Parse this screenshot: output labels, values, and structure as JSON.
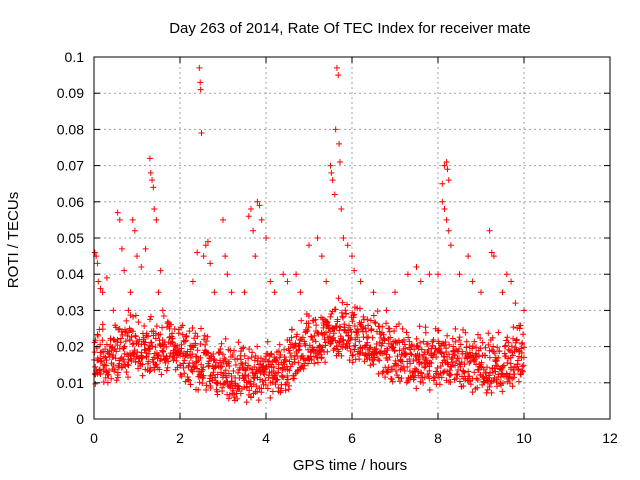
{
  "chart_data": {
    "type": "scatter",
    "title": "Day 263 of 2014, Rate Of TEC Index for receiver mate",
    "xlabel": "GPS time / hours",
    "ylabel": "ROTI / TECUs",
    "xlim": [
      0,
      12
    ],
    "ylim": [
      0,
      0.1
    ],
    "xticks": [
      0,
      2,
      4,
      6,
      8,
      10,
      12
    ],
    "xtick_labels": [
      "0",
      "2",
      "4",
      "6",
      "8",
      "10",
      "12"
    ],
    "yticks": [
      0,
      0.01,
      0.02,
      0.03,
      0.04,
      0.05,
      0.06,
      0.07,
      0.08,
      0.09,
      0.1
    ],
    "ytick_labels": [
      "0",
      "0.01",
      "0.02",
      "0.03",
      "0.04",
      "0.05",
      "0.06",
      "0.07",
      "0.08",
      "0.09",
      "0.1"
    ],
    "grid": true,
    "marker": "+",
    "marker_color": "#ff0000",
    "series": [
      {
        "name": "ROTI",
        "points": [
          [
            0.02,
            0.046
          ],
          [
            0.05,
            0.045
          ],
          [
            0.08,
            0.043
          ],
          [
            0.1,
            0.038
          ],
          [
            0.15,
            0.036
          ],
          [
            0.2,
            0.035
          ],
          [
            0.3,
            0.039
          ],
          [
            0.45,
            0.03
          ],
          [
            0.55,
            0.057
          ],
          [
            0.6,
            0.055
          ],
          [
            0.65,
            0.047
          ],
          [
            0.7,
            0.041
          ],
          [
            0.8,
            0.03
          ],
          [
            0.85,
            0.035
          ],
          [
            0.9,
            0.055
          ],
          [
            0.95,
            0.052
          ],
          [
            1.0,
            0.045
          ],
          [
            1.1,
            0.042
          ],
          [
            1.2,
            0.047
          ],
          [
            1.3,
            0.072
          ],
          [
            1.32,
            0.068
          ],
          [
            1.35,
            0.066
          ],
          [
            1.38,
            0.064
          ],
          [
            1.4,
            0.058
          ],
          [
            1.45,
            0.055
          ],
          [
            1.5,
            0.035
          ],
          [
            1.55,
            0.041
          ],
          [
            1.6,
            0.03
          ],
          [
            2.3,
            0.038
          ],
          [
            2.4,
            0.046
          ],
          [
            2.45,
            0.097
          ],
          [
            2.47,
            0.093
          ],
          [
            2.48,
            0.091
          ],
          [
            2.5,
            0.079
          ],
          [
            2.55,
            0.045
          ],
          [
            2.6,
            0.048
          ],
          [
            2.65,
            0.049
          ],
          [
            2.7,
            0.043
          ],
          [
            2.8,
            0.035
          ],
          [
            3.0,
            0.055
          ],
          [
            3.05,
            0.045
          ],
          [
            3.1,
            0.04
          ],
          [
            3.2,
            0.035
          ],
          [
            3.5,
            0.035
          ],
          [
            3.6,
            0.056
          ],
          [
            3.65,
            0.058
          ],
          [
            3.7,
            0.052
          ],
          [
            3.75,
            0.045
          ],
          [
            3.8,
            0.06
          ],
          [
            3.85,
            0.059
          ],
          [
            3.9,
            0.055
          ],
          [
            4.0,
            0.05
          ],
          [
            4.1,
            0.038
          ],
          [
            4.2,
            0.035
          ],
          [
            4.4,
            0.04
          ],
          [
            4.5,
            0.038
          ],
          [
            4.7,
            0.04
          ],
          [
            4.8,
            0.035
          ],
          [
            5.0,
            0.048
          ],
          [
            5.2,
            0.05
          ],
          [
            5.3,
            0.045
          ],
          [
            5.4,
            0.038
          ],
          [
            5.5,
            0.07
          ],
          [
            5.52,
            0.068
          ],
          [
            5.55,
            0.066
          ],
          [
            5.6,
            0.062
          ],
          [
            5.62,
            0.08
          ],
          [
            5.65,
            0.097
          ],
          [
            5.68,
            0.095
          ],
          [
            5.7,
            0.076
          ],
          [
            5.72,
            0.071
          ],
          [
            5.75,
            0.058
          ],
          [
            5.8,
            0.05
          ],
          [
            5.9,
            0.048
          ],
          [
            6.0,
            0.045
          ],
          [
            6.05,
            0.041
          ],
          [
            6.2,
            0.038
          ],
          [
            6.5,
            0.035
          ],
          [
            6.8,
            0.03
          ],
          [
            7.0,
            0.035
          ],
          [
            7.3,
            0.04
          ],
          [
            7.5,
            0.042
          ],
          [
            7.6,
            0.038
          ],
          [
            7.8,
            0.04
          ],
          [
            8.0,
            0.04
          ],
          [
            8.1,
            0.065
          ],
          [
            8.15,
            0.07
          ],
          [
            8.2,
            0.071
          ],
          [
            8.22,
            0.069
          ],
          [
            8.25,
            0.066
          ],
          [
            8.1,
            0.06
          ],
          [
            8.15,
            0.058
          ],
          [
            8.2,
            0.055
          ],
          [
            8.25,
            0.052
          ],
          [
            8.3,
            0.048
          ],
          [
            8.5,
            0.04
          ],
          [
            8.7,
            0.045
          ],
          [
            8.8,
            0.038
          ],
          [
            9.0,
            0.035
          ],
          [
            9.2,
            0.052
          ],
          [
            9.25,
            0.046
          ],
          [
            9.3,
            0.045
          ],
          [
            9.5,
            0.035
          ],
          [
            9.6,
            0.04
          ],
          [
            9.7,
            0.038
          ],
          [
            9.8,
            0.032
          ],
          [
            9.9,
            0.025
          ],
          [
            10.0,
            0.03
          ]
        ],
        "dense_band": {
          "description_free": true,
          "x_range": [
            0,
            10
          ],
          "y_center": 0.014,
          "y_spread": 0.012
        }
      }
    ]
  }
}
